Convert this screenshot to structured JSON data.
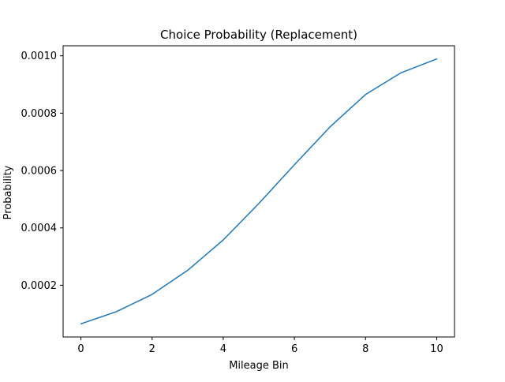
{
  "chart_data": {
    "type": "line",
    "title": "Choice Probability (Replacement)",
    "xlabel": "Mileage Bin",
    "ylabel": "Probability",
    "xlim": [
      -0.5,
      10.5
    ],
    "ylim": [
      1.95e-05,
      0.001035
    ],
    "xticks": [
      0,
      2,
      4,
      6,
      8,
      10
    ],
    "xtick_labels": [
      "0",
      "2",
      "4",
      "6",
      "8",
      "10"
    ],
    "yticks": [
      0.0002,
      0.0004,
      0.0006,
      0.0008,
      0.001
    ],
    "ytick_labels": [
      "0.0002",
      "0.0004",
      "0.0006",
      "0.0008",
      "0.0010"
    ],
    "grid": false,
    "series": [
      {
        "color": "#1f77b4",
        "x": [
          0,
          1,
          2,
          3,
          4,
          5,
          6,
          7,
          8,
          9,
          10
        ],
        "y": [
          6.55e-05,
          0.000108,
          0.000168,
          0.000252,
          0.000358,
          0.000485,
          0.00062,
          0.000752,
          0.000865,
          0.000941,
          0.000989
        ]
      }
    ]
  }
}
